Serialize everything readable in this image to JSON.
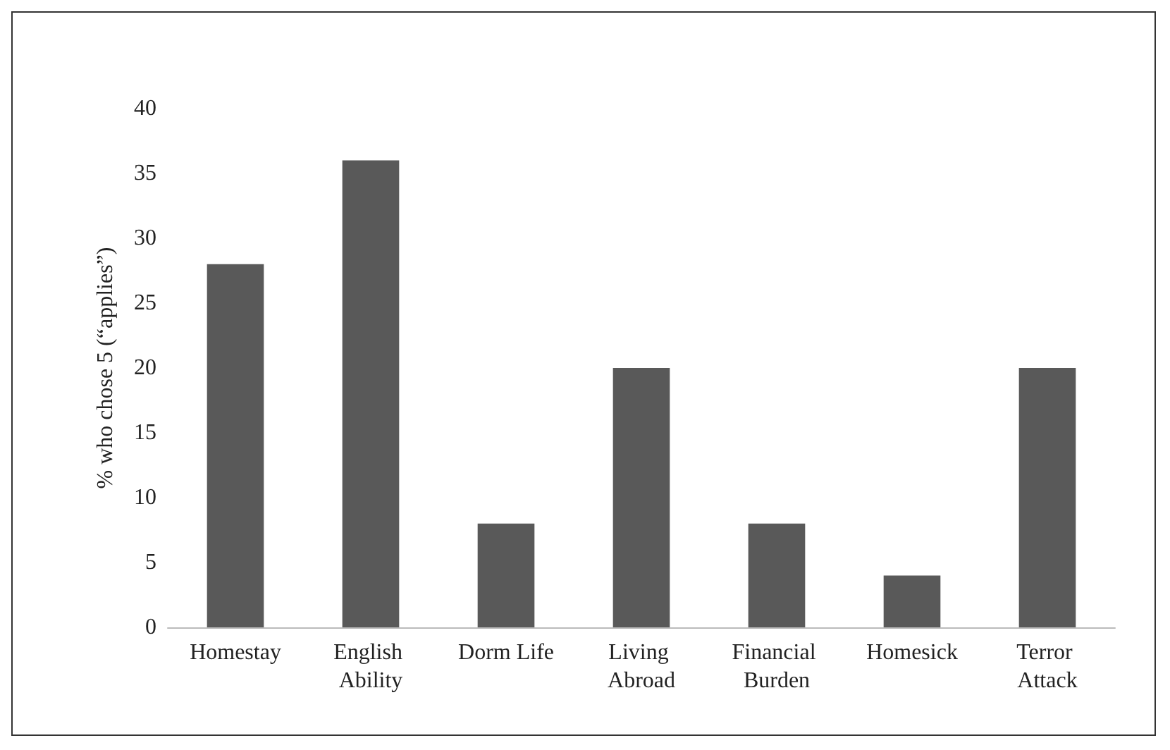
{
  "chart_data": {
    "type": "bar",
    "ylabel": "% who chose 5 (“applies”)",
    "categories": [
      "Homestay",
      "English Ability",
      "Dorm Life",
      "Living Abroad",
      "Financial Burden",
      "Homesick",
      "Terror Attack"
    ],
    "values": [
      28,
      36,
      8,
      20,
      8,
      4,
      20
    ],
    "color": "#595959",
    "ylim": [
      0,
      40
    ],
    "yticks": [
      0,
      5,
      10,
      15,
      20,
      25,
      30,
      35,
      40
    ],
    "grid": false
  }
}
